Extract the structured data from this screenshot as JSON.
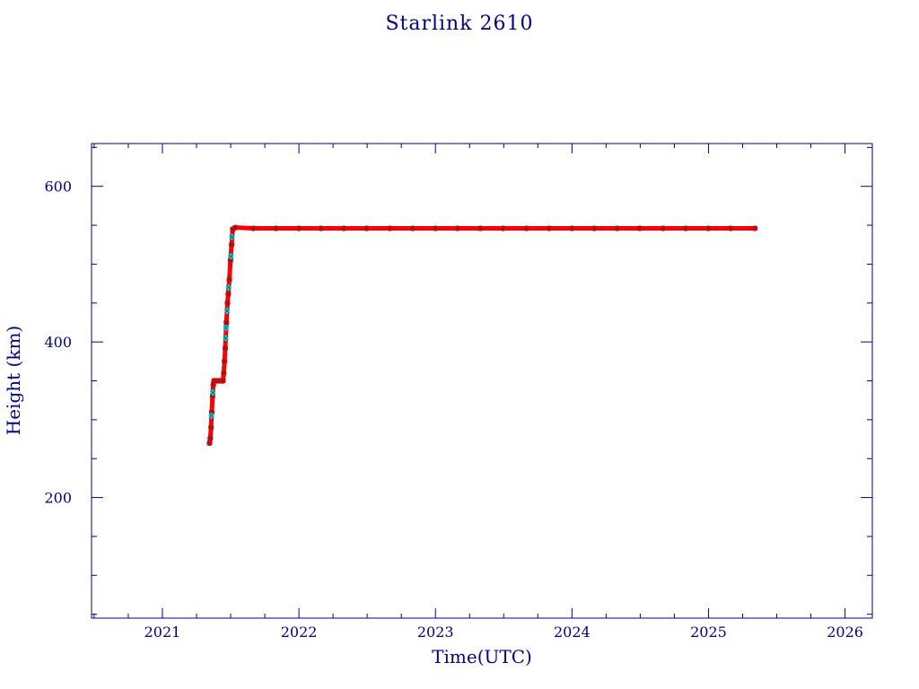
{
  "chart_data": {
    "type": "scatter",
    "title": "Starlink 2610",
    "xlabel": "Time(UTC)",
    "ylabel": "Height (km)",
    "xlim": [
      "2020-06-25",
      "2026-03-15"
    ],
    "ylim": [
      45,
      655
    ],
    "x_ticks": [
      "2021",
      "2022",
      "2023",
      "2024",
      "2025",
      "2026"
    ],
    "y_ticks": [
      200,
      400,
      600
    ],
    "grid": false,
    "colors": {
      "axis": "#00008b",
      "primary_marker": "#ff0000",
      "secondary_marker": "#00e5ee",
      "marker_edge": "#333333"
    },
    "series": [
      {
        "color": "#ff0000",
        "points": [
          [
            "2021-05-07",
            270
          ],
          [
            "2021-05-09",
            276
          ],
          [
            "2021-05-11",
            290
          ],
          [
            "2021-05-13",
            310
          ],
          [
            "2021-05-15",
            330
          ],
          [
            "2021-05-17",
            345
          ],
          [
            "2021-05-19",
            350
          ],
          [
            "2021-05-25",
            350
          ],
          [
            "2021-06-01",
            350
          ],
          [
            "2021-06-08",
            350
          ],
          [
            "2021-06-12",
            350
          ],
          [
            "2021-06-14",
            360
          ],
          [
            "2021-06-16",
            375
          ],
          [
            "2021-06-18",
            392
          ],
          [
            "2021-06-21",
            425
          ],
          [
            "2021-06-24",
            450
          ],
          [
            "2021-06-26",
            462
          ],
          [
            "2021-06-29",
            480
          ],
          [
            "2021-07-02",
            505
          ],
          [
            "2021-07-05",
            525
          ],
          [
            "2021-07-08",
            545
          ],
          [
            "2021-07-15",
            547
          ],
          [
            "2021-09-01",
            546
          ],
          [
            "2021-11-01",
            546
          ],
          [
            "2022-01-01",
            546
          ],
          [
            "2022-03-01",
            546
          ],
          [
            "2022-05-01",
            546
          ],
          [
            "2022-07-01",
            546
          ],
          [
            "2022-09-01",
            546
          ],
          [
            "2022-11-01",
            546
          ],
          [
            "2023-01-01",
            546
          ],
          [
            "2023-03-01",
            546
          ],
          [
            "2023-05-01",
            546
          ],
          [
            "2023-07-01",
            546
          ],
          [
            "2023-09-01",
            546
          ],
          [
            "2023-11-01",
            546
          ],
          [
            "2024-01-01",
            546
          ],
          [
            "2024-03-01",
            546
          ],
          [
            "2024-05-01",
            546
          ],
          [
            "2024-07-01",
            546
          ],
          [
            "2024-09-01",
            546
          ],
          [
            "2024-11-01",
            546
          ],
          [
            "2025-01-01",
            546
          ],
          [
            "2025-03-01",
            546
          ],
          [
            "2025-05-05",
            546
          ]
        ]
      },
      {
        "color": "#00e5ee",
        "points": [
          [
            "2021-05-12",
            305
          ],
          [
            "2021-05-16",
            335
          ],
          [
            "2021-06-19",
            405
          ],
          [
            "2021-06-20",
            418
          ],
          [
            "2021-06-23",
            440
          ],
          [
            "2021-06-27",
            470
          ],
          [
            "2021-07-03",
            510
          ],
          [
            "2021-07-06",
            535
          ]
        ]
      }
    ]
  }
}
